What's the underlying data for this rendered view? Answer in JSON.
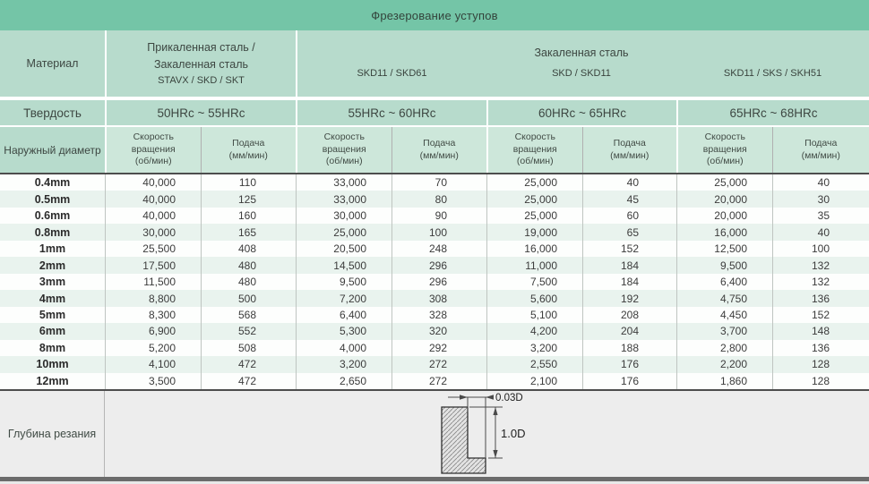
{
  "title": "Фрезерование уступов",
  "labels": {
    "material": "Материал",
    "hardness": "Твердость",
    "diameter": "Наружный диаметр",
    "speed": [
      "Скорость",
      "вращения",
      "(об/мин)"
    ],
    "feed": [
      "Подача",
      "(мм/мин)"
    ],
    "depth_of_cut": "Глубина резания"
  },
  "groups": [
    {
      "hardness": "50HRc ~ 55HRc"
    },
    {
      "hardness": "55HRc ~ 60HRc"
    },
    {
      "hardness": "60HRc ~ 65HRc"
    },
    {
      "hardness": "65HRc ~ 68HRc"
    }
  ],
  "first_group_material_lines": [
    "Прикаленная сталь /",
    "Закаленная сталь",
    "STAVX / SKD / SKT"
  ],
  "hardened_group": {
    "title": "Закаленная сталь",
    "subs": [
      "SKD11 / SKD61",
      "SKD / SKD11",
      "SKD11 / SKS / SKH51"
    ]
  },
  "rows": [
    {
      "diameter": "0.4mm",
      "values": [
        "40,000",
        "110",
        "33,000",
        "70",
        "25,000",
        "40",
        "25,000",
        "40"
      ]
    },
    {
      "diameter": "0.5mm",
      "values": [
        "40,000",
        "125",
        "33,000",
        "80",
        "25,000",
        "45",
        "20,000",
        "30"
      ]
    },
    {
      "diameter": "0.6mm",
      "values": [
        "40,000",
        "160",
        "30,000",
        "90",
        "25,000",
        "60",
        "20,000",
        "35"
      ]
    },
    {
      "diameter": "0.8mm",
      "values": [
        "30,000",
        "165",
        "25,000",
        "100",
        "19,000",
        "65",
        "16,000",
        "40"
      ]
    },
    {
      "diameter": "1mm",
      "values": [
        "25,500",
        "408",
        "20,500",
        "248",
        "16,000",
        "152",
        "12,500",
        "100"
      ]
    },
    {
      "diameter": "2mm",
      "values": [
        "17,500",
        "480",
        "14,500",
        "296",
        "11,000",
        "184",
        "9,500",
        "132"
      ]
    },
    {
      "diameter": "3mm",
      "values": [
        "11,500",
        "480",
        "9,500",
        "296",
        "7,500",
        "184",
        "6,400",
        "132"
      ]
    },
    {
      "diameter": "4mm",
      "values": [
        "8,800",
        "500",
        "7,200",
        "308",
        "5,600",
        "192",
        "4,750",
        "136"
      ]
    },
    {
      "diameter": "5mm",
      "values": [
        "8,300",
        "568",
        "6,400",
        "328",
        "5,100",
        "208",
        "4,450",
        "152"
      ]
    },
    {
      "diameter": "6mm",
      "values": [
        "6,900",
        "552",
        "5,300",
        "320",
        "4,200",
        "204",
        "3,700",
        "148"
      ]
    },
    {
      "diameter": "8mm",
      "values": [
        "5,200",
        "508",
        "4,000",
        "292",
        "3,200",
        "188",
        "2,800",
        "136"
      ]
    },
    {
      "diameter": "10mm",
      "values": [
        "4,100",
        "472",
        "3,200",
        "272",
        "2,550",
        "176",
        "2,200",
        "128"
      ]
    },
    {
      "diameter": "12mm",
      "values": [
        "3,500",
        "472",
        "2,650",
        "272",
        "2,100",
        "176",
        "1,860",
        "128"
      ]
    }
  ],
  "diagram": {
    "width_dim": "0.03D",
    "depth_dim": "1.0D"
  },
  "colors": {
    "title_band": "#74c5a7",
    "header_green": "#b7dbcc",
    "subheader_green": "#cde7da",
    "row_tint": "#e9f3ee",
    "bottom_gray": "#ededed",
    "dark_band": "#6b6b6b"
  }
}
